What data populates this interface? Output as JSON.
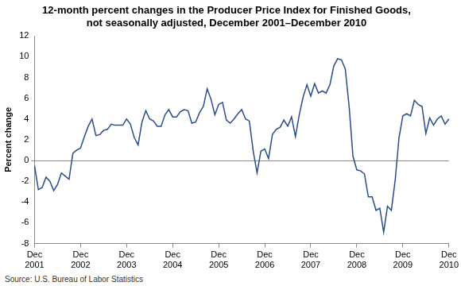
{
  "chart_data": {
    "type": "line",
    "title": [
      "12-month percent changes in the Producer Price Index for Finished Goods,",
      "not seasonally adjusted, December 2001–December 2010"
    ],
    "y_label": "Percent change",
    "source": "Source: U.S. Bureau of Labor Statistics",
    "categories": [
      "Dec 2001",
      null,
      null,
      null,
      null,
      null,
      null,
      null,
      null,
      null,
      null,
      null,
      "Dec 2002",
      null,
      null,
      null,
      null,
      null,
      null,
      null,
      null,
      null,
      null,
      null,
      "Dec 2003",
      null,
      null,
      null,
      null,
      null,
      null,
      null,
      null,
      null,
      null,
      null,
      "Dec 2004",
      null,
      null,
      null,
      null,
      null,
      null,
      null,
      null,
      null,
      null,
      null,
      "Dec 2005",
      null,
      null,
      null,
      null,
      null,
      null,
      null,
      null,
      null,
      null,
      null,
      "Dec 2006",
      null,
      null,
      null,
      null,
      null,
      null,
      null,
      null,
      null,
      null,
      null,
      "Dec 2007",
      null,
      null,
      null,
      null,
      null,
      null,
      null,
      null,
      null,
      null,
      null,
      "Dec 2008",
      null,
      null,
      null,
      null,
      null,
      null,
      null,
      null,
      null,
      null,
      null,
      "Dec 2009",
      null,
      null,
      null,
      null,
      null,
      null,
      null,
      null,
      null,
      null,
      null,
      "Dec 2010"
    ],
    "values": [
      -0.5,
      -2.8,
      -2.6,
      -1.6,
      -2.0,
      -2.9,
      -2.3,
      -1.2,
      -1.5,
      -1.8,
      0.7,
      1.0,
      1.2,
      2.3,
      3.3,
      4.0,
      2.4,
      2.5,
      2.9,
      3.0,
      3.5,
      3.4,
      3.4,
      3.4,
      4.0,
      3.5,
      2.2,
      1.5,
      3.7,
      4.8,
      4.0,
      3.8,
      3.3,
      3.3,
      4.4,
      4.9,
      4.2,
      4.2,
      4.7,
      4.9,
      4.8,
      3.6,
      3.7,
      4.6,
      5.2,
      6.9,
      5.9,
      4.4,
      5.4,
      5.6,
      3.9,
      3.6,
      4.0,
      4.5,
      4.9,
      4.0,
      3.8,
      0.9,
      -1.2,
      0.9,
      1.1,
      0.2,
      2.5,
      3.0,
      3.2,
      3.9,
      3.3,
      4.2,
      2.3,
      4.4,
      6.1,
      7.3,
      6.2,
      7.4,
      6.5,
      6.7,
      6.5,
      7.3,
      9.1,
      9.8,
      9.7,
      8.8,
      5.2,
      0.4,
      -0.9,
      -1.0,
      -1.3,
      -3.5,
      -3.5,
      -4.8,
      -4.6,
      -6.9,
      -4.4,
      -4.8,
      -1.9,
      2.2,
      4.3,
      4.5,
      4.3,
      5.8,
      5.4,
      5.2,
      2.6,
      4.1,
      3.4,
      4.0,
      4.3,
      3.5,
      4.0
    ],
    "color": "#2b4c8c",
    "ylim": [
      -8,
      12
    ],
    "yticks": [
      -8,
      -6,
      -4,
      -2,
      0,
      2,
      4,
      6,
      8,
      10,
      12
    ],
    "grid": false
  }
}
